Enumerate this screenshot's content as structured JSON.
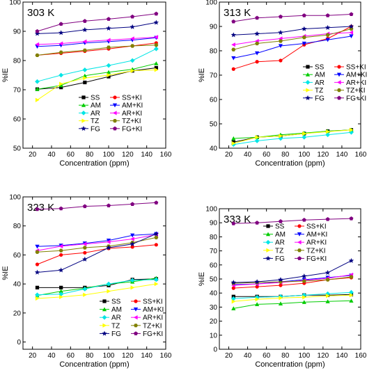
{
  "series_styles": {
    "SS": {
      "color": "#000000",
      "marker": "square"
    },
    "SS+KI": {
      "color": "#ff0000",
      "marker": "circle"
    },
    "AM": {
      "color": "#00cc00",
      "marker": "triangle-up"
    },
    "AM+KI": {
      "color": "#0000ff",
      "marker": "triangle-down"
    },
    "AR": {
      "color": "#00e5e5",
      "marker": "diamond"
    },
    "AR+KI": {
      "color": "#ff00ff",
      "marker": "triangle-left"
    },
    "TZ": {
      "color": "#ffff00",
      "marker": "triangle-right"
    },
    "TZ+KI": {
      "color": "#808000",
      "marker": "hexagon"
    },
    "FG": {
      "color": "#000080",
      "marker": "star"
    },
    "FG+KI": {
      "color": "#800080",
      "marker": "pentagon"
    }
  },
  "chart_data": [
    {
      "type": "line",
      "title": "303 K",
      "xlabel": "Concentration (ppm)",
      "ylabel": "%IE",
      "xlim": [
        10,
        160
      ],
      "ylim": [
        50,
        100
      ],
      "xticks": [
        20,
        40,
        60,
        80,
        100,
        120,
        140,
        160
      ],
      "yticks": [
        50,
        60,
        70,
        80,
        90,
        100
      ],
      "legend_loc": "lower-right",
      "x": [
        25,
        50,
        75,
        100,
        125,
        150
      ],
      "series": [
        {
          "name": "SS",
          "values": [
            70.2,
            70.8,
            72.5,
            74.5,
            76.5,
            77.5
          ]
        },
        {
          "name": "SS+KI",
          "values": [
            81.8,
            82.5,
            83.2,
            84.0,
            85.0,
            86.0
          ]
        },
        {
          "name": "AM",
          "values": [
            70.2,
            71.5,
            74.8,
            76.0,
            77.0,
            79.0
          ]
        },
        {
          "name": "AM+KI",
          "values": [
            84.8,
            85.2,
            86.0,
            86.5,
            87.0,
            87.8
          ]
        },
        {
          "name": "AR",
          "values": [
            72.8,
            75.0,
            76.8,
            78.3,
            80.0,
            84.0
          ]
        },
        {
          "name": "AR+KI",
          "values": [
            85.5,
            85.8,
            86.5,
            87.0,
            87.5,
            88.0
          ]
        },
        {
          "name": "TZ",
          "values": [
            66.5,
            72.0,
            74.0,
            75.0,
            76.5,
            76.8
          ]
        },
        {
          "name": "TZ+KI",
          "values": [
            81.8,
            82.8,
            83.5,
            84.5,
            85.0,
            85.3
          ]
        },
        {
          "name": "FG",
          "values": [
            89.2,
            89.5,
            90.5,
            91.0,
            91.5,
            93.0
          ]
        },
        {
          "name": "FG+KI",
          "values": [
            90.0,
            92.5,
            93.5,
            94.2,
            95.0,
            96.0
          ]
        }
      ]
    },
    {
      "type": "line",
      "title": "313 K",
      "xlabel": "Concentration (ppm)",
      "ylabel": "%IE",
      "xlim": [
        10,
        160
      ],
      "ylim": [
        40,
        100
      ],
      "xticks": [
        20,
        40,
        60,
        80,
        100,
        120,
        140,
        160
      ],
      "yticks": [
        40,
        50,
        60,
        70,
        80,
        90,
        100
      ],
      "legend_loc": "center-right",
      "x": [
        25,
        50,
        75,
        100,
        125,
        150
      ],
      "series": [
        {
          "name": "SS",
          "values": [
            42.5,
            44.5,
            45.0,
            46.0,
            47.0,
            47.5
          ]
        },
        {
          "name": "SS+KI",
          "values": [
            72.5,
            75.5,
            76.0,
            82.5,
            85.0,
            90.0
          ]
        },
        {
          "name": "AM",
          "values": [
            44.0,
            44.5,
            45.5,
            46.2,
            47.0,
            47.5
          ]
        },
        {
          "name": "AM+KI",
          "values": [
            77.0,
            79.0,
            82.0,
            83.0,
            84.5,
            86.0
          ]
        },
        {
          "name": "AR",
          "values": [
            41.5,
            43.0,
            44.0,
            44.5,
            45.5,
            46.5
          ]
        },
        {
          "name": "AR+KI",
          "values": [
            82.5,
            84.0,
            85.0,
            86.0,
            87.0,
            87.5
          ]
        },
        {
          "name": "TZ",
          "values": [
            42.0,
            44.5,
            45.0,
            46.0,
            46.8,
            47.5
          ]
        },
        {
          "name": "TZ+KI",
          "values": [
            80.5,
            83.0,
            84.0,
            85.5,
            86.5,
            89.0
          ]
        },
        {
          "name": "FG",
          "values": [
            86.5,
            87.0,
            87.5,
            89.0,
            89.5,
            90.0
          ]
        },
        {
          "name": "FG+KI",
          "values": [
            92.0,
            93.5,
            94.0,
            94.5,
            94.5,
            95.0
          ]
        }
      ]
    },
    {
      "type": "line",
      "title": "323 K",
      "xlabel": "Concentration (ppm)",
      "ylabel": "%IE",
      "xlim": [
        10,
        160
      ],
      "ylim": [
        -5,
        100
      ],
      "xticks": [
        20,
        40,
        60,
        80,
        100,
        120,
        140,
        160
      ],
      "yticks": [
        0,
        20,
        40,
        60,
        80,
        100
      ],
      "legend_loc": "lower-right",
      "x": [
        25,
        50,
        75,
        100,
        125,
        150
      ],
      "series": [
        {
          "name": "SS",
          "values": [
            37.5,
            37.5,
            37.5,
            39.0,
            43.0,
            43.5
          ]
        },
        {
          "name": "SS+KI",
          "values": [
            53.5,
            60.0,
            61.5,
            64.5,
            65.5,
            67.0
          ]
        },
        {
          "name": "AM",
          "values": [
            32.0,
            35.0,
            37.0,
            40.0,
            41.5,
            44.0
          ]
        },
        {
          "name": "AM+KI",
          "values": [
            65.8,
            66.5,
            68.0,
            70.0,
            73.5,
            74.5
          ]
        },
        {
          "name": "AR",
          "values": [
            32.5,
            33.0,
            36.5,
            40.0,
            42.5,
            43.0
          ]
        },
        {
          "name": "AR+KI",
          "values": [
            63.0,
            66.0,
            67.5,
            69.0,
            71.0,
            74.0
          ]
        },
        {
          "name": "TZ",
          "values": [
            30.0,
            31.0,
            32.5,
            35.0,
            37.5,
            40.0
          ]
        },
        {
          "name": "TZ+KI",
          "values": [
            62.0,
            63.0,
            65.0,
            66.0,
            68.5,
            72.0
          ]
        },
        {
          "name": "FG",
          "values": [
            48.0,
            49.5,
            57.0,
            65.0,
            67.5,
            74.5
          ]
        },
        {
          "name": "FG+KI",
          "values": [
            91.5,
            92.0,
            93.5,
            94.0,
            95.0,
            96.0
          ]
        }
      ]
    },
    {
      "type": "line",
      "title": "333 K",
      "xlabel": "Concentration (ppm)",
      "ylabel": "%IE",
      "xlim": [
        10,
        160
      ],
      "ylim": [
        0,
        100
      ],
      "xticks": [
        20,
        40,
        60,
        80,
        100,
        120,
        140,
        160
      ],
      "yticks": [
        0,
        10,
        20,
        30,
        40,
        50,
        60,
        70,
        80,
        90,
        100
      ],
      "legend_loc": "center-right",
      "x": [
        25,
        50,
        75,
        100,
        125,
        150
      ],
      "series": [
        {
          "name": "SS",
          "values": [
            37.5,
            37.5,
            37.5,
            38.5,
            38.5,
            39.0
          ]
        },
        {
          "name": "SS+KI",
          "values": [
            43.5,
            44.5,
            45.5,
            47.0,
            49.5,
            51.0
          ]
        },
        {
          "name": "AM",
          "values": [
            29.0,
            32.0,
            32.5,
            33.5,
            34.0,
            34.5
          ]
        },
        {
          "name": "AM+KI",
          "values": [
            46.0,
            46.5,
            48.0,
            49.5,
            51.0,
            52.5
          ]
        },
        {
          "name": "AR",
          "values": [
            36.0,
            37.0,
            37.5,
            38.5,
            39.5,
            40.5
          ]
        },
        {
          "name": "AR+KI",
          "values": [
            45.5,
            46.5,
            47.5,
            49.0,
            50.5,
            53.0
          ]
        },
        {
          "name": "TZ",
          "values": [
            34.0,
            35.5,
            36.5,
            37.0,
            38.0,
            38.5
          ]
        },
        {
          "name": "TZ+KI",
          "values": [
            47.0,
            47.5,
            48.0,
            48.5,
            49.5,
            51.5
          ]
        },
        {
          "name": "FG",
          "values": [
            47.5,
            48.0,
            49.5,
            52.0,
            54.5,
            63.0
          ]
        },
        {
          "name": "FG+KI",
          "values": [
            89.5,
            90.0,
            91.0,
            92.0,
            92.5,
            93.0
          ]
        }
      ]
    }
  ]
}
